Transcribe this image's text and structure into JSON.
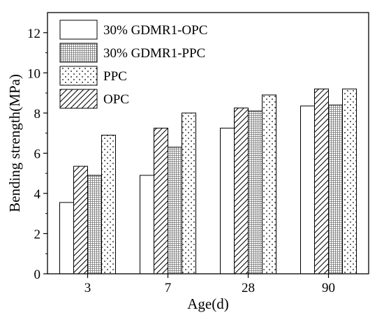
{
  "chart_data": {
    "type": "bar",
    "xlabel": "Age(d)",
    "ylabel": "Bending strength(MPa)",
    "ylim": [
      0,
      13
    ],
    "yticks": [
      0,
      2,
      4,
      6,
      8,
      10,
      12
    ],
    "categories": [
      "3",
      "7",
      "28",
      "90"
    ],
    "series": [
      {
        "name": "30% GDMR1-OPC",
        "values": [
          3.55,
          4.9,
          7.25,
          8.35
        ],
        "pattern": "blank"
      },
      {
        "name": "OPC",
        "values": [
          5.35,
          7.25,
          8.25,
          9.2
        ],
        "pattern": "hatch"
      },
      {
        "name": "30% GDMR1-PPC",
        "values": [
          4.9,
          6.3,
          8.1,
          8.4
        ],
        "pattern": "grid"
      },
      {
        "name": "PPC",
        "values": [
          6.9,
          8.0,
          8.9,
          9.2
        ],
        "pattern": "dots"
      }
    ],
    "legend": {
      "placement": "top-left",
      "order": [
        "30% GDMR1-OPC",
        "30% GDMR1-PPC",
        "PPC",
        "OPC"
      ]
    },
    "grid": false
  }
}
